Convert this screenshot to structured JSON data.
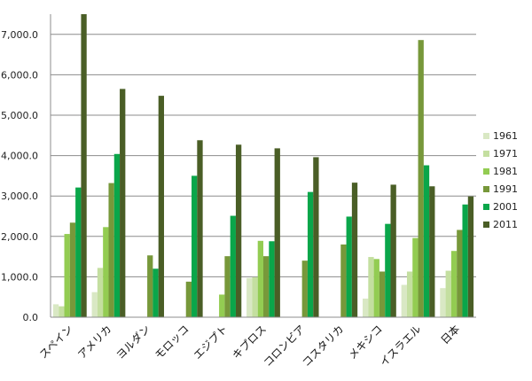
{
  "chart_data": {
    "type": "bar",
    "categories": [
      "スペイン",
      "アメリカ",
      "ヨルダン",
      "モロッコ",
      "エジプト",
      "キプロス",
      "コロンビア",
      "コスタリカ",
      "メキシコ",
      "イスラエル",
      "日本"
    ],
    "series": [
      {
        "name": "1961",
        "color": "#d9e8c4",
        "values": [
          320,
          620,
          0,
          0,
          0,
          970,
          0,
          0,
          460,
          800,
          720
        ]
      },
      {
        "name": "1971",
        "color": "#c4dfa0",
        "values": [
          270,
          1220,
          0,
          0,
          0,
          990,
          0,
          0,
          1490,
          1130,
          1150
        ]
      },
      {
        "name": "1981",
        "color": "#93cc52",
        "values": [
          2060,
          2230,
          0,
          0,
          560,
          1890,
          0,
          0,
          1440,
          1960,
          1640
        ]
      },
      {
        "name": "1991",
        "color": "#77983a",
        "values": [
          2340,
          3320,
          1530,
          880,
          1510,
          1510,
          1400,
          1800,
          1130,
          6860,
          2160
        ]
      },
      {
        "name": "2001",
        "color": "#0aa64a",
        "values": [
          3210,
          4040,
          1200,
          3500,
          2510,
          1880,
          3100,
          2490,
          2310,
          3760,
          2790
        ]
      },
      {
        "name": "2011",
        "color": "#4a5e26",
        "values": [
          7500,
          5650,
          5480,
          4380,
          4270,
          4180,
          3960,
          3330,
          3280,
          3240,
          2990
        ]
      }
    ],
    "yticks": [
      "0.0",
      "1,000.0",
      "2,000.0",
      "3,000.0",
      "4,000.0",
      "5,000.0",
      "6,000.0",
      "7,000.0"
    ],
    "ylim": [
      0,
      7500
    ],
    "grid": true,
    "legend_position": "right"
  }
}
